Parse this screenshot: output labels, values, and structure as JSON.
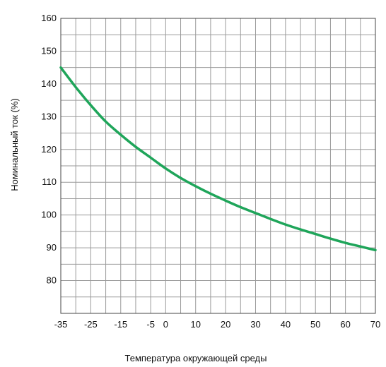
{
  "chart_data": {
    "type": "line",
    "title": "",
    "xlabel": "Температура окружающей среды",
    "ylabel": "Номинальный ток (%)",
    "xlim": [
      -35,
      70
    ],
    "ylim": [
      70,
      160
    ],
    "x_ticks": [
      -35,
      -25,
      -15,
      -5,
      0,
      10,
      20,
      30,
      40,
      50,
      60,
      70
    ],
    "x_tick_labels": [
      "-35",
      "-25",
      "-15",
      "-5",
      "0",
      "10",
      "20",
      "30",
      "40",
      "50",
      "60",
      "70"
    ],
    "y_ticks": [
      80,
      90,
      100,
      110,
      120,
      130,
      140,
      150,
      160
    ],
    "y_tick_labels": [
      "80",
      "90",
      "100",
      "110",
      "120",
      "130",
      "140",
      "150",
      "160"
    ],
    "x_minor_step": 5,
    "y_minor_step": 5,
    "grid": true,
    "series": [
      {
        "color": "#1fa55a",
        "x": [
          -35,
          -30,
          -25,
          -20,
          -15,
          -10,
          -5,
          0,
          5,
          10,
          15,
          20,
          25,
          30,
          35,
          40,
          45,
          50,
          55,
          60,
          65,
          70
        ],
        "y": [
          145,
          139,
          133.5,
          128.5,
          124.5,
          120.8,
          117.5,
          114.2,
          111.3,
          108.8,
          106.5,
          104.4,
          102.4,
          100.6,
          98.8,
          97.1,
          95.6,
          94.2,
          92.8,
          91.5,
          90.4,
          89.3
        ]
      }
    ]
  }
}
